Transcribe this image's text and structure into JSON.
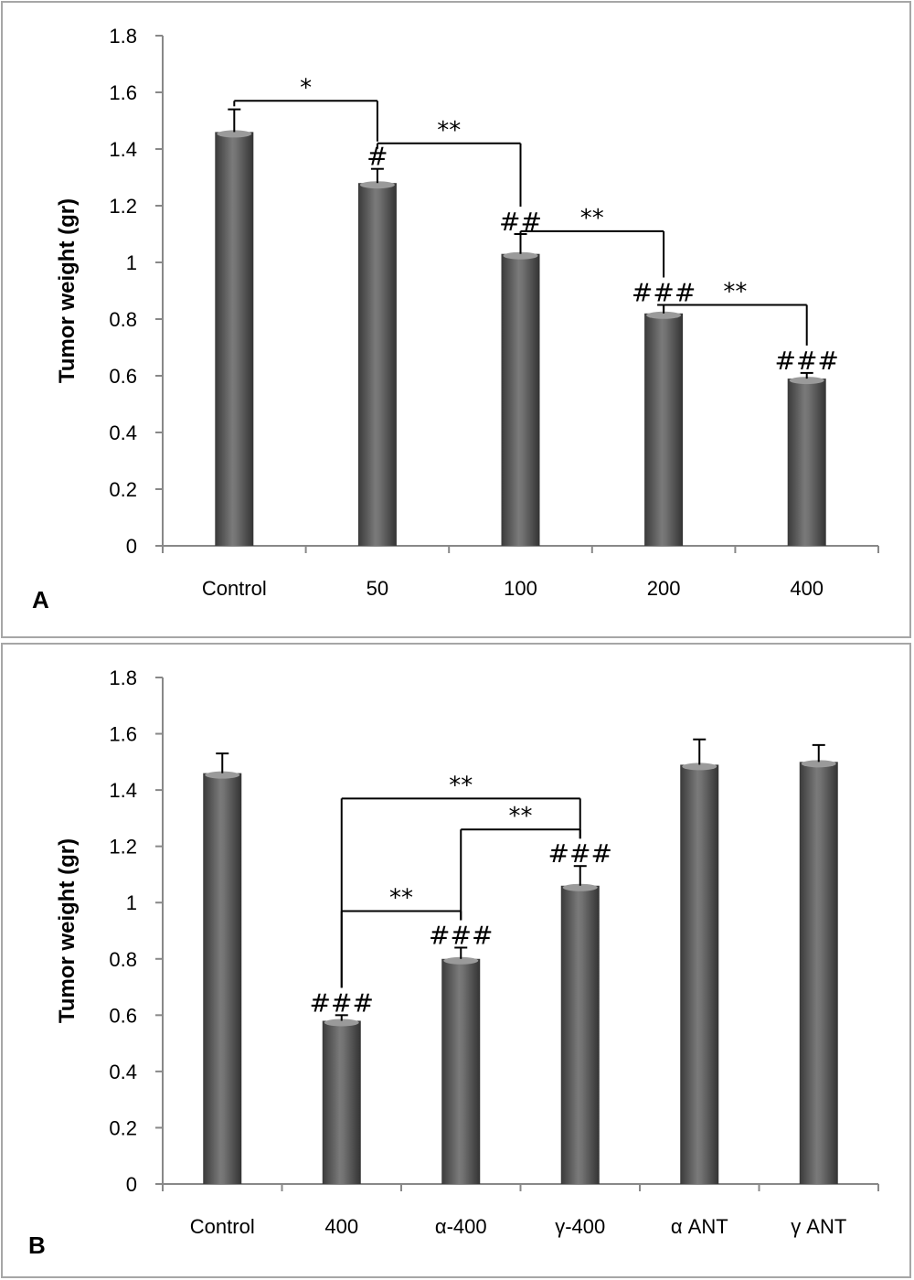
{
  "chart_data": [
    {
      "panel_label": "A",
      "type": "bar",
      "ylabel": "Tumor weight (gr)",
      "xlabel": "",
      "ylim": [
        0,
        1.8
      ],
      "yticks": [
        "0",
        "0.2",
        "0.4",
        "0.6",
        "0.8",
        "1",
        "1.2",
        "1.4",
        "1.6",
        "1.8"
      ],
      "categories": [
        "Control",
        "50",
        "100",
        "200",
        "400"
      ],
      "values": [
        1.46,
        1.28,
        1.03,
        0.82,
        0.59
      ],
      "errors": [
        0.08,
        0.05,
        0.07,
        0.03,
        0.02
      ],
      "hash_labels": [
        "",
        "#",
        "##",
        "###",
        "###"
      ],
      "comparisons": [
        {
          "from": 0,
          "to": 1,
          "label": "*",
          "level": 1.57
        },
        {
          "from": 1,
          "to": 2,
          "label": "**",
          "level": 1.42
        },
        {
          "from": 2,
          "to": 3,
          "label": "**",
          "level": 1.11
        },
        {
          "from": 3,
          "to": 4,
          "label": "**",
          "level": 0.85
        }
      ],
      "legend": "none",
      "grid": false
    },
    {
      "panel_label": "B",
      "type": "bar",
      "ylabel": "Tumor weight (gr)",
      "xlabel": "",
      "ylim": [
        0,
        1.8
      ],
      "yticks": [
        "0",
        "0.2",
        "0.4",
        "0.6",
        "0.8",
        "1",
        "1.2",
        "1.4",
        "1.6",
        "1.8"
      ],
      "categories": [
        "Control",
        "400",
        "α-400",
        "γ-400",
        "α ANT",
        "γ ANT"
      ],
      "values": [
        1.46,
        0.58,
        0.8,
        1.06,
        1.49,
        1.5
      ],
      "errors": [
        0.07,
        0.02,
        0.04,
        0.07,
        0.09,
        0.06
      ],
      "hash_labels": [
        "",
        "###",
        "###",
        "###",
        "",
        ""
      ],
      "comparisons": [
        {
          "from": 1,
          "to": 3,
          "label": "**",
          "level": 1.37
        },
        {
          "from": 2,
          "to": 3,
          "label": "**",
          "level": 1.26
        },
        {
          "from": 1,
          "to": 2,
          "label": "**",
          "level": 0.97
        }
      ],
      "legend": "none",
      "grid": false
    }
  ]
}
